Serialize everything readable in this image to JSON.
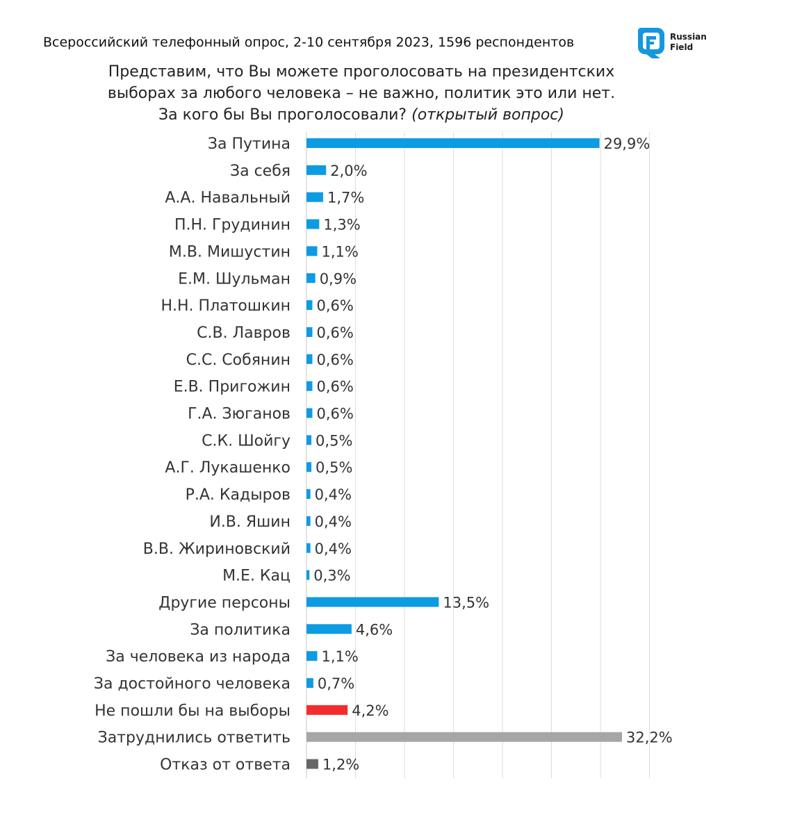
{
  "header": {
    "survey_line": "Всероссийский телефонный опрос, 2-10 сентября 2023, 1596 респондентов",
    "logo_text_line1": "Russian",
    "logo_text_line2": "Field",
    "logo_icon": "russian-field-logo-icon"
  },
  "question": {
    "line1": "Представим, что Вы можете проголосовать на президентских",
    "line2": "выборах за любого человека – не важно, политик это или нет.",
    "line3_main": "За кого бы Вы проголосовали? ",
    "line3_note": "(открытый вопрос)"
  },
  "colors": {
    "blue": "#0d9be3",
    "red": "#f52c2c",
    "gray": "#a6a6a6",
    "dark_gray": "#666666",
    "logo": "#1597e0"
  },
  "chart_data": {
    "type": "bar",
    "orientation": "horizontal",
    "grid": true,
    "xlim": [
      0,
      35
    ],
    "categories": [
      "За Путина",
      "За себя",
      "А.А. Навальный",
      "П.Н. Грудинин",
      "М.В. Мишустин",
      "Е.М. Шульман",
      "Н.Н. Платошкин",
      "С.В. Лавров",
      "С.С. Собянин",
      "Е.В. Пригожин",
      "Г.А. Зюганов",
      "С.К. Шойгу",
      "А.Г. Лукашенко",
      "Р.А. Кадыров",
      "И.В. Яшин",
      "В.В. Жириновский",
      "М.Е. Кац",
      "Другие персоны",
      "За политика",
      "За человека из народа",
      "За достойного человека",
      "Не пошли бы на выборы",
      "Затруднились ответить",
      "Отказ от ответа"
    ],
    "values": [
      29.9,
      2.0,
      1.7,
      1.3,
      1.1,
      0.9,
      0.6,
      0.6,
      0.6,
      0.6,
      0.6,
      0.5,
      0.5,
      0.4,
      0.4,
      0.4,
      0.3,
      13.5,
      4.6,
      1.1,
      0.7,
      4.2,
      32.2,
      1.2
    ],
    "labels": [
      "29,9%",
      "2,0%",
      "1,7%",
      "1,3%",
      "1,1%",
      "0,9%",
      "0,6%",
      "0,6%",
      "0,6%",
      "0,6%",
      "0,6%",
      "0,5%",
      "0,5%",
      "0,4%",
      "0,4%",
      "0,4%",
      "0,3%",
      "13,5%",
      "4,6%",
      "1,1%",
      "0,7%",
      "4,2%",
      "32,2%",
      "1,2%"
    ],
    "bar_colors": [
      "blue",
      "blue",
      "blue",
      "blue",
      "blue",
      "blue",
      "blue",
      "blue",
      "blue",
      "blue",
      "blue",
      "blue",
      "blue",
      "blue",
      "blue",
      "blue",
      "blue",
      "blue",
      "blue",
      "blue",
      "blue",
      "red",
      "gray",
      "dark_gray"
    ]
  }
}
